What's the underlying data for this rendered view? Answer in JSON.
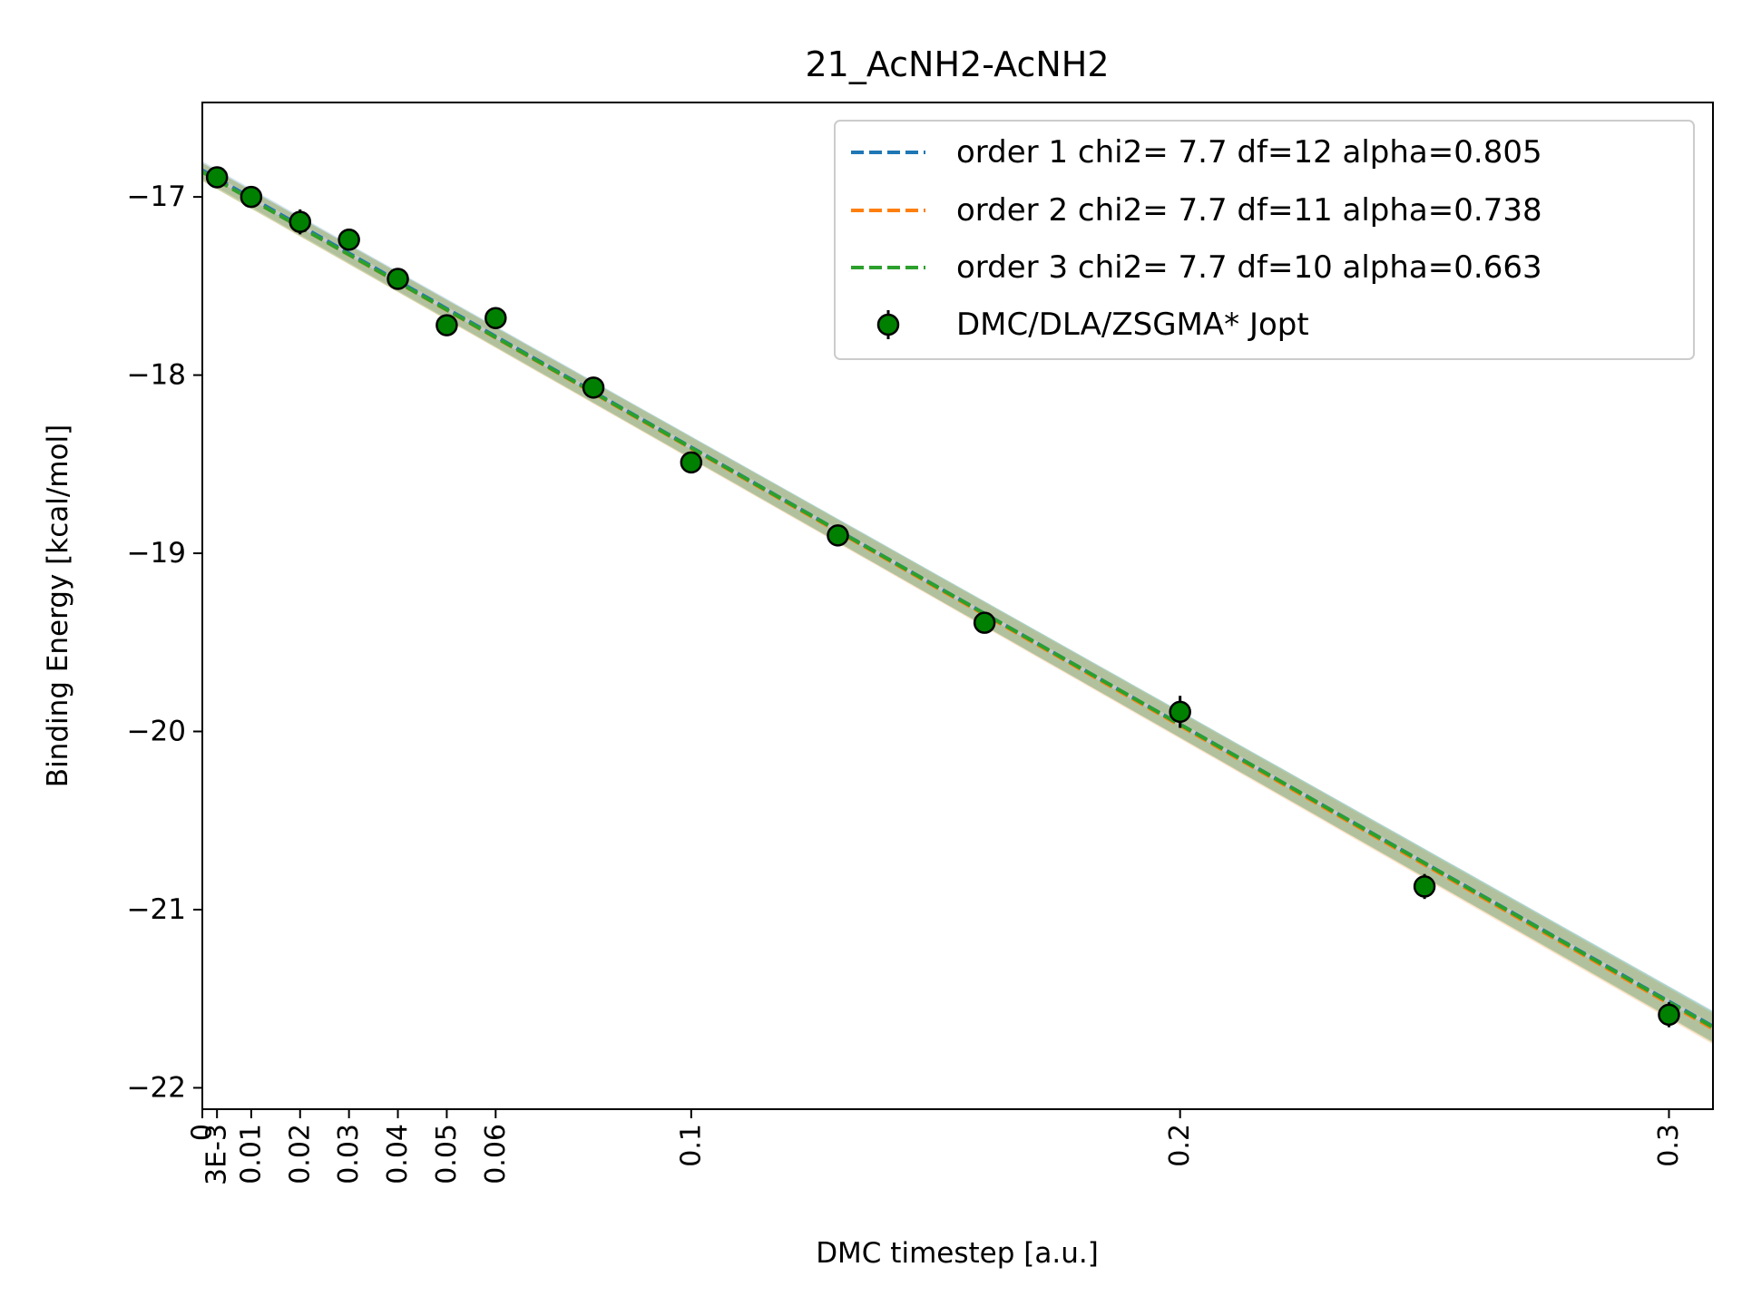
{
  "chart_data": {
    "type": "scatter",
    "title": "21_AcNH2-AcNH2",
    "xlabel": "DMC timestep [a.u.]",
    "ylabel": "Binding Energy [kcal/mol]",
    "xlim": [
      0,
      0.309
    ],
    "ylim": [
      -22.12,
      -16.47
    ],
    "grid": false,
    "legend_position": "top-right",
    "x_ticks": [
      {
        "value": 0,
        "label": "0"
      },
      {
        "value": 0.003,
        "label": "3E-3"
      },
      {
        "value": 0.01,
        "label": "0.01"
      },
      {
        "value": 0.02,
        "label": "0.02"
      },
      {
        "value": 0.03,
        "label": "0.03"
      },
      {
        "value": 0.04,
        "label": "0.04"
      },
      {
        "value": 0.05,
        "label": "0.05"
      },
      {
        "value": 0.06,
        "label": "0.06"
      },
      {
        "value": 0.1,
        "label": "0.1"
      },
      {
        "value": 0.2,
        "label": "0.2"
      },
      {
        "value": 0.3,
        "label": "0.3"
      }
    ],
    "y_ticks": [
      {
        "value": -17,
        "label": "−17"
      },
      {
        "value": -18,
        "label": "−18"
      },
      {
        "value": -19,
        "label": "−19"
      },
      {
        "value": -20,
        "label": "−20"
      },
      {
        "value": -21,
        "label": "−21"
      },
      {
        "value": -22,
        "label": "−22"
      }
    ],
    "fits": [
      {
        "name": "order 1 chi2= 7.7 df=12 alpha=0.805",
        "color": "#1f77b4",
        "coef": [
          -16.85,
          -15.55,
          0,
          0
        ]
      },
      {
        "name": "order 2 chi2= 7.7 df=11 alpha=0.738",
        "color": "#ff7f0e",
        "coef": [
          -16.86,
          -15.5,
          -0.2,
          0
        ]
      },
      {
        "name": "order 3 chi2= 7.7 df=10 alpha=0.663",
        "color": "#2ca02c",
        "coef": [
          -16.86,
          -15.45,
          -0.3,
          0.1
        ]
      }
    ],
    "reference_line": {
      "color": "#c8c8c8",
      "coef": [
        -16.85,
        -15.55,
        0,
        0
      ]
    },
    "series": [
      {
        "name": "DMC/DLA/ZSGMA* Jopt",
        "color": "#008000",
        "points": [
          {
            "x": 0.003,
            "y": -16.89,
            "err": 0.05
          },
          {
            "x": 0.01,
            "y": -17.0,
            "err": 0.05
          },
          {
            "x": 0.02,
            "y": -17.14,
            "err": 0.07
          },
          {
            "x": 0.03,
            "y": -17.24,
            "err": 0.06
          },
          {
            "x": 0.04,
            "y": -17.46,
            "err": 0.05
          },
          {
            "x": 0.05,
            "y": -17.72,
            "err": 0.05
          },
          {
            "x": 0.06,
            "y": -17.68,
            "err": 0.05
          },
          {
            "x": 0.08,
            "y": -18.07,
            "err": 0.06
          },
          {
            "x": 0.1,
            "y": -18.49,
            "err": 0.06
          },
          {
            "x": 0.13,
            "y": -18.9,
            "err": 0.06
          },
          {
            "x": 0.16,
            "y": -19.39,
            "err": 0.05
          },
          {
            "x": 0.2,
            "y": -19.89,
            "err": 0.09
          },
          {
            "x": 0.25,
            "y": -20.87,
            "err": 0.07
          },
          {
            "x": 0.3,
            "y": -21.59,
            "err": 0.07
          }
        ]
      }
    ]
  }
}
